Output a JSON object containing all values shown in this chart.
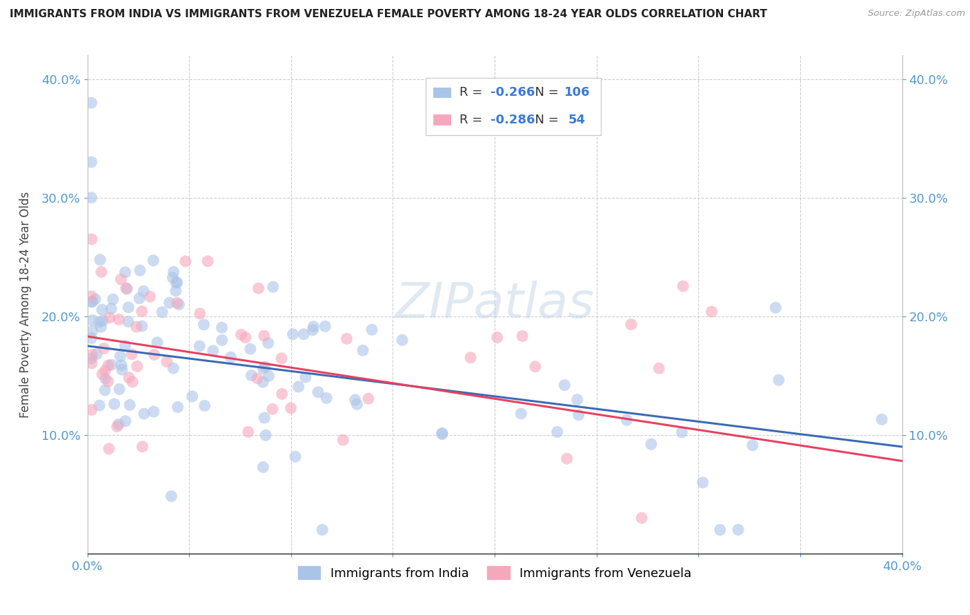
{
  "title": "IMMIGRANTS FROM INDIA VS IMMIGRANTS FROM VENEZUELA FEMALE POVERTY AMONG 18-24 YEAR OLDS CORRELATION CHART",
  "source": "Source: ZipAtlas.com",
  "ylabel": "Female Poverty Among 18-24 Year Olds",
  "xlim": [
    0.0,
    0.4
  ],
  "ylim": [
    0.0,
    0.42
  ],
  "india_color": "#aac4e8",
  "venezuela_color": "#f5a8bc",
  "india_R": -0.266,
  "india_N": 106,
  "venezuela_R": -0.286,
  "venezuela_N": 54,
  "india_line_color": "#3a6bb5",
  "venezuela_line_color": "#e84060",
  "watermark_text": "ZIPatlas",
  "background_color": "#ffffff",
  "legend_text_color": "#333333",
  "legend_value_color": "#3a7ad4",
  "tick_color": "#5599cc"
}
